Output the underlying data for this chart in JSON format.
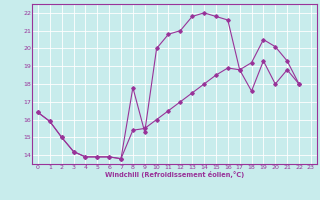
{
  "xlabel": "Windchill (Refroidissement éolien,°C)",
  "bg_color": "#c8ecec",
  "grid_color": "#ffffff",
  "line_color": "#993399",
  "xlim": [
    -0.5,
    23.5
  ],
  "ylim": [
    13.5,
    22.5
  ],
  "xticks": [
    0,
    1,
    2,
    3,
    4,
    5,
    6,
    7,
    8,
    9,
    10,
    11,
    12,
    13,
    14,
    15,
    16,
    17,
    18,
    19,
    20,
    21,
    22,
    23
  ],
  "yticks": [
    14,
    15,
    16,
    17,
    18,
    19,
    20,
    21,
    22
  ],
  "curve1_x": [
    0,
    1,
    2,
    3,
    4,
    5,
    6,
    7,
    8,
    9,
    10,
    11,
    12,
    13,
    14,
    15,
    16,
    17,
    18,
    19,
    20,
    21,
    22
  ],
  "curve1_y": [
    16.4,
    15.9,
    15.0,
    14.2,
    13.9,
    13.9,
    13.9,
    13.8,
    17.8,
    15.3,
    20.0,
    20.8,
    21.0,
    21.8,
    22.0,
    21.8,
    21.6,
    18.8,
    19.2,
    20.5,
    20.1,
    19.3,
    18.0
  ],
  "curve2_x": [
    0,
    1,
    2,
    3,
    4,
    5,
    6,
    7,
    8,
    9,
    10,
    11,
    12,
    13,
    14,
    15,
    16,
    17,
    18,
    19,
    20,
    21,
    22
  ],
  "curve2_y": [
    16.4,
    15.9,
    15.0,
    14.2,
    13.9,
    13.9,
    13.9,
    13.8,
    15.4,
    15.5,
    16.0,
    16.5,
    17.0,
    17.5,
    18.0,
    18.5,
    18.9,
    18.8,
    17.6,
    19.3,
    18.0,
    18.8,
    18.0
  ]
}
